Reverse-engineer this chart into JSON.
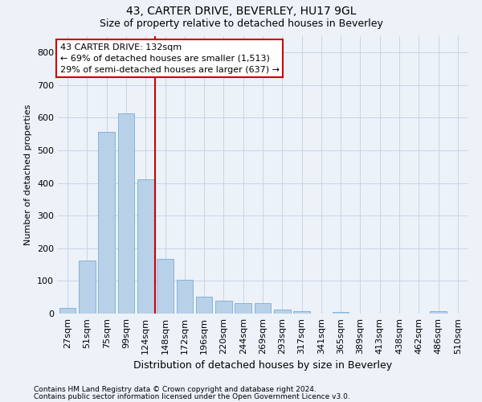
{
  "title1": "43, CARTER DRIVE, BEVERLEY, HU17 9GL",
  "title2": "Size of property relative to detached houses in Beverley",
  "xlabel": "Distribution of detached houses by size in Beverley",
  "ylabel": "Number of detached properties",
  "footnote1": "Contains HM Land Registry data © Crown copyright and database right 2024.",
  "footnote2": "Contains public sector information licensed under the Open Government Licence v3.0.",
  "categories": [
    "27sqm",
    "51sqm",
    "75sqm",
    "99sqm",
    "124sqm",
    "148sqm",
    "172sqm",
    "196sqm",
    "220sqm",
    "244sqm",
    "269sqm",
    "293sqm",
    "317sqm",
    "341sqm",
    "365sqm",
    "389sqm",
    "413sqm",
    "438sqm",
    "462sqm",
    "486sqm",
    "510sqm"
  ],
  "values": [
    18,
    163,
    557,
    614,
    411,
    168,
    103,
    52,
    39,
    31,
    31,
    13,
    8,
    0,
    5,
    0,
    0,
    0,
    0,
    7,
    0
  ],
  "bar_color": "#b8d0e8",
  "bar_edge_color": "#7aadd4",
  "grid_color": "#c8d4e4",
  "vline_x": 4.5,
  "vline_color": "#cc0000",
  "annotation_line1": "43 CARTER DRIVE: 132sqm",
  "annotation_line2": "← 69% of detached houses are smaller (1,513)",
  "annotation_line3": "29% of semi-detached houses are larger (637) →",
  "annotation_box_color": "#ffffff",
  "annotation_box_edge": "#cc0000",
  "ylim": [
    0,
    850
  ],
  "yticks": [
    0,
    100,
    200,
    300,
    400,
    500,
    600,
    700,
    800
  ],
  "background_color": "#edf2f9",
  "title1_fontsize": 10,
  "title2_fontsize": 9,
  "xlabel_fontsize": 9,
  "ylabel_fontsize": 8,
  "tick_fontsize": 8,
  "footnote_fontsize": 6.5
}
